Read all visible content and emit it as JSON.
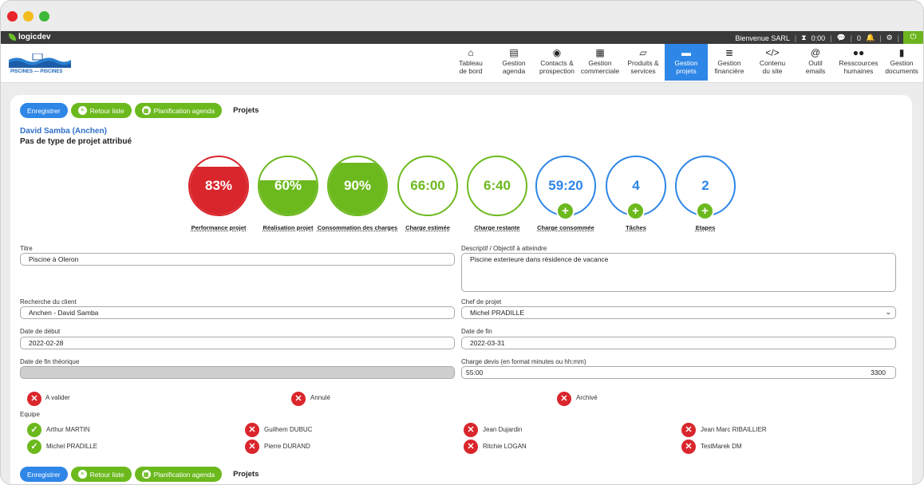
{
  "window": {
    "dot_colors": [
      "#e8252b",
      "#f2bd1c",
      "#3fb83a"
    ]
  },
  "topbar": {
    "logo": "logicdev",
    "welcome": "Bienvenue SARL",
    "timer": "0:00",
    "notif_count": "0",
    "power_icon": "power-icon"
  },
  "brand": {
    "label": "PISCINES — PISCINES"
  },
  "nav": {
    "items": [
      {
        "icon": "⌂",
        "line1": "Tableau",
        "line2": "de bord"
      },
      {
        "icon": "▤",
        "line1": "Gestion",
        "line2": "agenda"
      },
      {
        "icon": "◉",
        "line1": "Contacts &",
        "line2": "prospection"
      },
      {
        "icon": "▦",
        "line1": "Gestion",
        "line2": "commerciale"
      },
      {
        "icon": "▱",
        "line1": "Produits &",
        "line2": "services"
      },
      {
        "icon": "▬",
        "line1": "Gestion",
        "line2": "projets",
        "active": true
      },
      {
        "icon": "≣",
        "line1": "Gestion",
        "line2": "financière"
      },
      {
        "icon": "</>",
        "line1": "Contenu",
        "line2": "du site"
      },
      {
        "icon": "@",
        "line1": "Outil",
        "line2": "emails"
      },
      {
        "icon": "●●",
        "line1": "Resscources",
        "line2": "humaines"
      },
      {
        "icon": "▮",
        "line1": "Gestion",
        "line2": "documents"
      }
    ]
  },
  "actions": {
    "save": "Enregistrer",
    "back": "Retour liste",
    "planning": "Planification agenda",
    "section": "Projets"
  },
  "project": {
    "client_name": "David Samba (Anchen)",
    "type_text": "Pas de type de projet attribué"
  },
  "kpis": [
    {
      "value": "83%",
      "label": "Performance projet",
      "fill": 0.83,
      "color": "#d9262c"
    },
    {
      "value": "60%",
      "label": "Réalisation projet",
      "fill": 0.6,
      "color": "#6cb91e"
    },
    {
      "value": "90%",
      "label": "Consommation des charges",
      "fill": 0.9,
      "color": "#6cb91e"
    },
    {
      "value": "66:00",
      "label": "Charge estimée",
      "fill": 0,
      "color": "#6cb91e"
    },
    {
      "value": "6:40",
      "label": "Charge restante",
      "fill": 0,
      "color": "#6cb91e"
    },
    {
      "value": "59:20",
      "label": "Charge consommée",
      "fill": 0,
      "color": "#2e86e6",
      "plus": true
    },
    {
      "value": "4",
      "label": "Tâches",
      "fill": 0,
      "color": "#2e86e6",
      "plus": true
    },
    {
      "value": "2",
      "label": "Etapes",
      "fill": 0,
      "color": "#2e86e6",
      "plus": true
    }
  ],
  "form": {
    "titre_label": "Titre",
    "titre_value": "Piscine à Oleron",
    "descriptif_label": "Descriptif / Objectif à atteindre",
    "descriptif_value": "Piscine exterieure dans résidence de vacance",
    "client_label": "Recherche du client",
    "client_value": "Anchen - David Samba",
    "chef_label": "Chef de projet",
    "chef_value": "Michel PRADILLE",
    "date_debut_label": "Date de début",
    "date_debut_value": "2022-02-28",
    "date_fin_label": "Date de fin",
    "date_fin_value": "2022-03-31",
    "date_fin_theorique_label": "Date de fin théorique",
    "charge_label": "Charge devis (en format minutes ou hh:mm)",
    "charge_value": "55:00",
    "charge_minutes": "3300"
  },
  "statuses": [
    {
      "label": "A valider"
    },
    {
      "label": "Annulé"
    },
    {
      "label": "Archivé"
    }
  ],
  "equipe": {
    "label": "Equipe",
    "members": [
      {
        "name": "Arthur MARTIN",
        "checked": true
      },
      {
        "name": "Guilhem DUBUC",
        "checked": false
      },
      {
        "name": "Jean Dujardin",
        "checked": false
      },
      {
        "name": "Jean Marc RIBAILLIER",
        "checked": false
      },
      {
        "name": "Michel PRADILLE",
        "checked": true
      },
      {
        "name": "Pierre DURAND",
        "checked": false
      },
      {
        "name": "Ritchie LOGAN",
        "checked": false
      },
      {
        "name": "TestMarek DM",
        "checked": false
      }
    ]
  }
}
